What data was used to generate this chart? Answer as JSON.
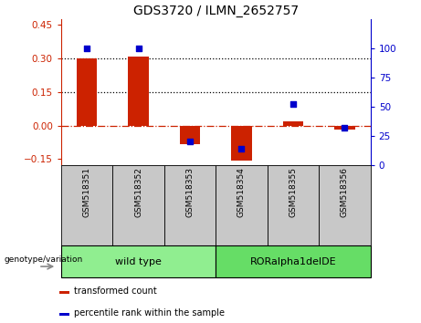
{
  "title": "GDS3720 / ILMN_2652757",
  "samples": [
    "GSM518351",
    "GSM518352",
    "GSM518353",
    "GSM518354",
    "GSM518355",
    "GSM518356"
  ],
  "transformed_count": [
    0.3,
    0.31,
    -0.085,
    -0.155,
    0.02,
    -0.018
  ],
  "percentile_rank": [
    100,
    100,
    20,
    14,
    52,
    32
  ],
  "ylim_left": [
    -0.175,
    0.475
  ],
  "ylim_right": [
    0,
    125
  ],
  "yticks_left": [
    -0.15,
    0.0,
    0.15,
    0.3,
    0.45
  ],
  "yticks_right": [
    0,
    25,
    50,
    75,
    100
  ],
  "hlines": [
    0.15,
    0.3
  ],
  "groups": [
    {
      "label": "wild type",
      "samples": [
        0,
        1,
        2
      ],
      "color": "#90EE90"
    },
    {
      "label": "RORalpha1delDE",
      "samples": [
        3,
        4,
        5
      ],
      "color": "#66DD66"
    }
  ],
  "group_label": "genotype/variation",
  "legend_items": [
    {
      "label": "transformed count",
      "color": "#CC2200"
    },
    {
      "label": "percentile rank within the sample",
      "color": "#0000CC"
    }
  ],
  "bar_color": "#CC2200",
  "dot_color": "#0000CC",
  "zero_line_color": "#CC2200",
  "grid_line_color": "#000000",
  "sample_bg_color": "#C8C8C8",
  "title_fontsize": 10,
  "tick_fontsize": 7.5,
  "label_fontsize": 7.5
}
